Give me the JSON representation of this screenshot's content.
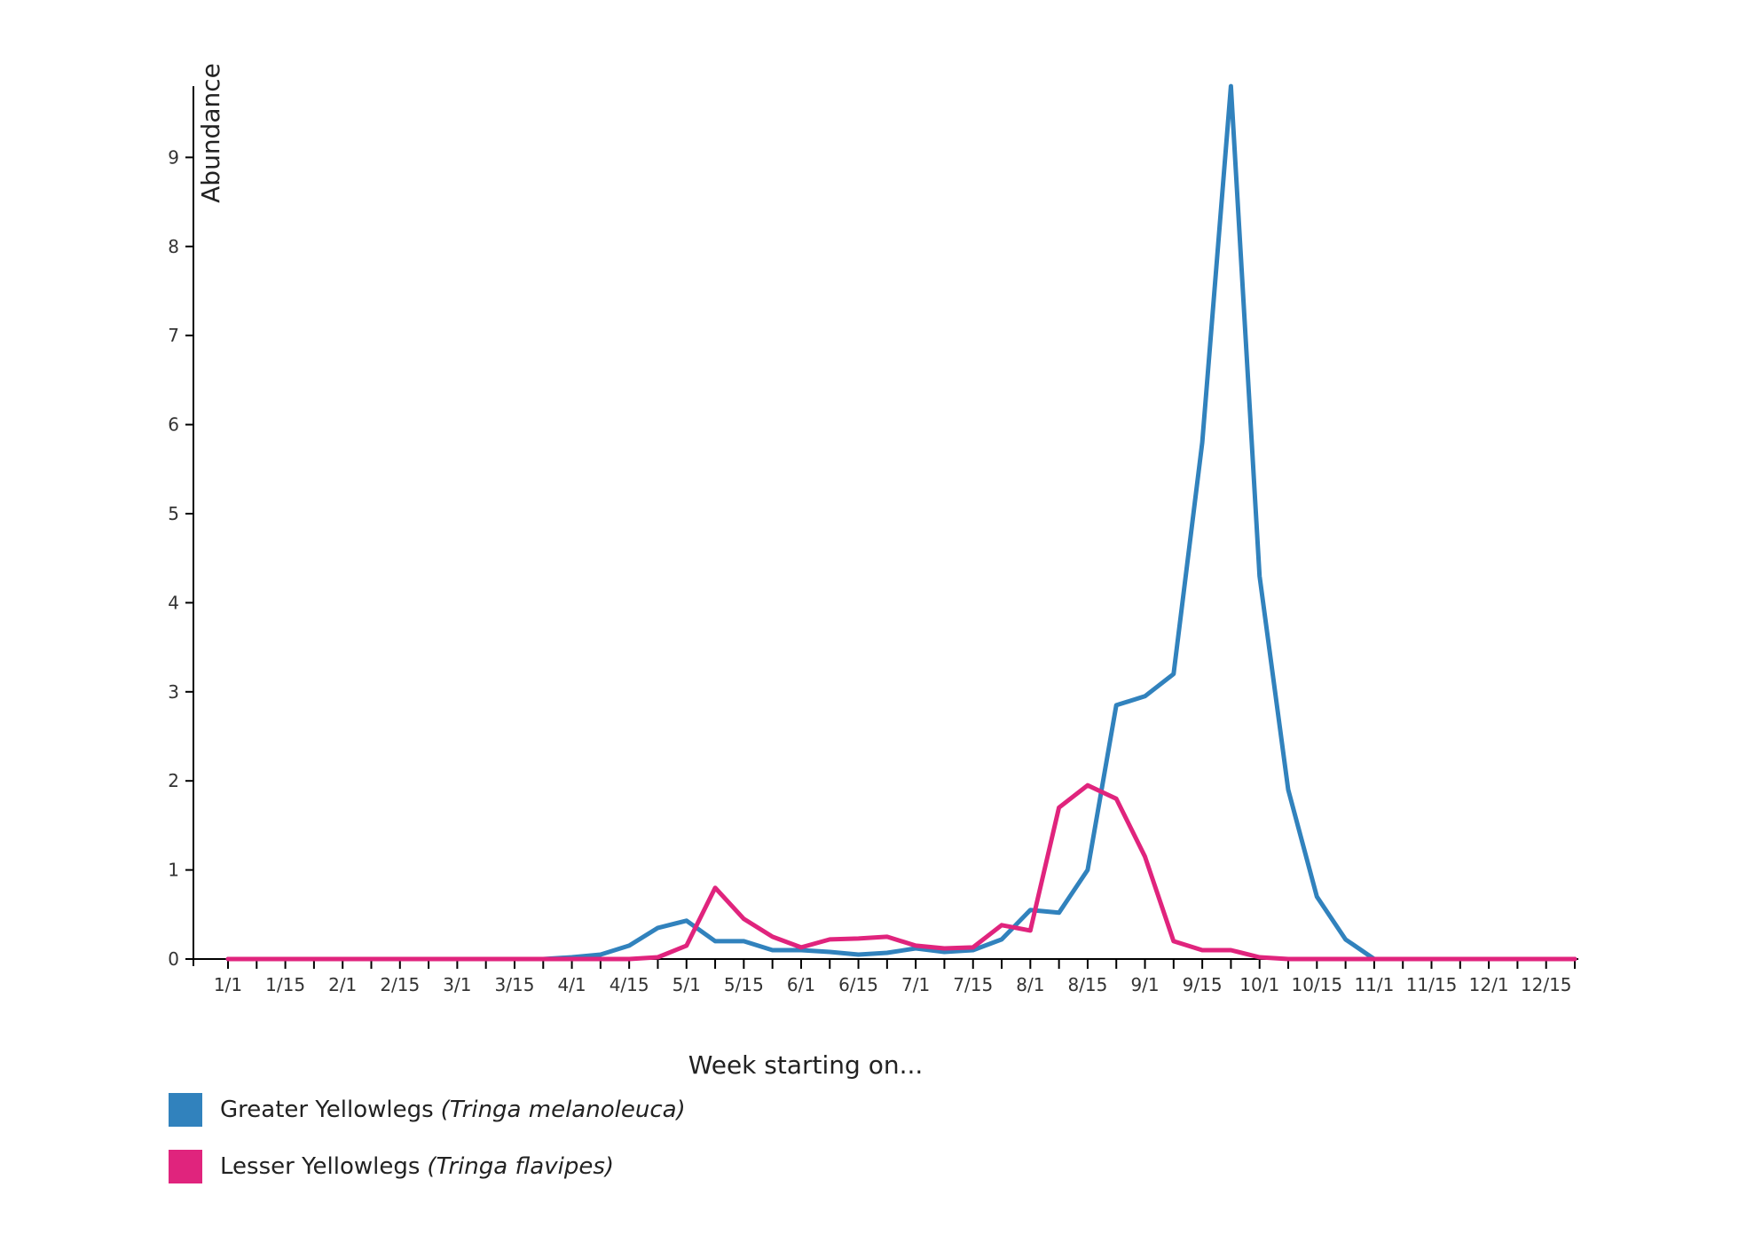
{
  "chart_data": {
    "type": "line",
    "xlabel": "Week starting on...",
    "ylabel": "Abundance",
    "ylim": [
      0,
      9.8
    ],
    "yticks": [
      0,
      1,
      2,
      3,
      4,
      5,
      6,
      7,
      8,
      9
    ],
    "x_tick_labels": [
      "1/1",
      "1/15",
      "2/1",
      "2/15",
      "3/1",
      "3/15",
      "4/1",
      "4/15",
      "5/1",
      "5/15",
      "6/1",
      "6/15",
      "7/1",
      "7/15",
      "8/1",
      "8/15",
      "9/1",
      "9/15",
      "10/1",
      "10/15",
      "11/1",
      "11/15",
      "12/1",
      "12/15"
    ],
    "num_weeks": 48,
    "legend_position": "bottom-left",
    "series": [
      {
        "name": "Greater Yellowlegs",
        "scientific_name": "(Tringa melanoleuca)",
        "color": "#3182bd",
        "values": [
          0,
          0,
          0,
          0,
          0,
          0,
          0,
          0,
          0,
          0,
          0,
          0,
          0.02,
          0.05,
          0.15,
          0.35,
          0.43,
          0.2,
          0.2,
          0.1,
          0.1,
          0.08,
          0.05,
          0.07,
          0.12,
          0.08,
          0.1,
          0.22,
          0.55,
          0.52,
          1.0,
          2.85,
          2.95,
          3.2,
          5.8,
          9.8,
          4.3,
          1.9,
          0.7,
          0.22,
          0,
          0,
          0,
          0,
          0,
          0,
          0,
          0
        ]
      },
      {
        "name": "Lesser Yellowlegs",
        "scientific_name": "(Tringa flavipes)",
        "color": "#e0247d",
        "values": [
          0,
          0,
          0,
          0,
          0,
          0,
          0,
          0,
          0,
          0,
          0,
          0,
          0,
          0,
          0,
          0.02,
          0.15,
          0.8,
          0.45,
          0.25,
          0.13,
          0.22,
          0.23,
          0.25,
          0.15,
          0.12,
          0.13,
          0.38,
          0.32,
          1.7,
          1.95,
          1.8,
          1.15,
          0.2,
          0.1,
          0.1,
          0.02,
          0,
          0,
          0,
          0,
          0,
          0,
          0,
          0,
          0,
          0,
          0
        ]
      }
    ]
  }
}
